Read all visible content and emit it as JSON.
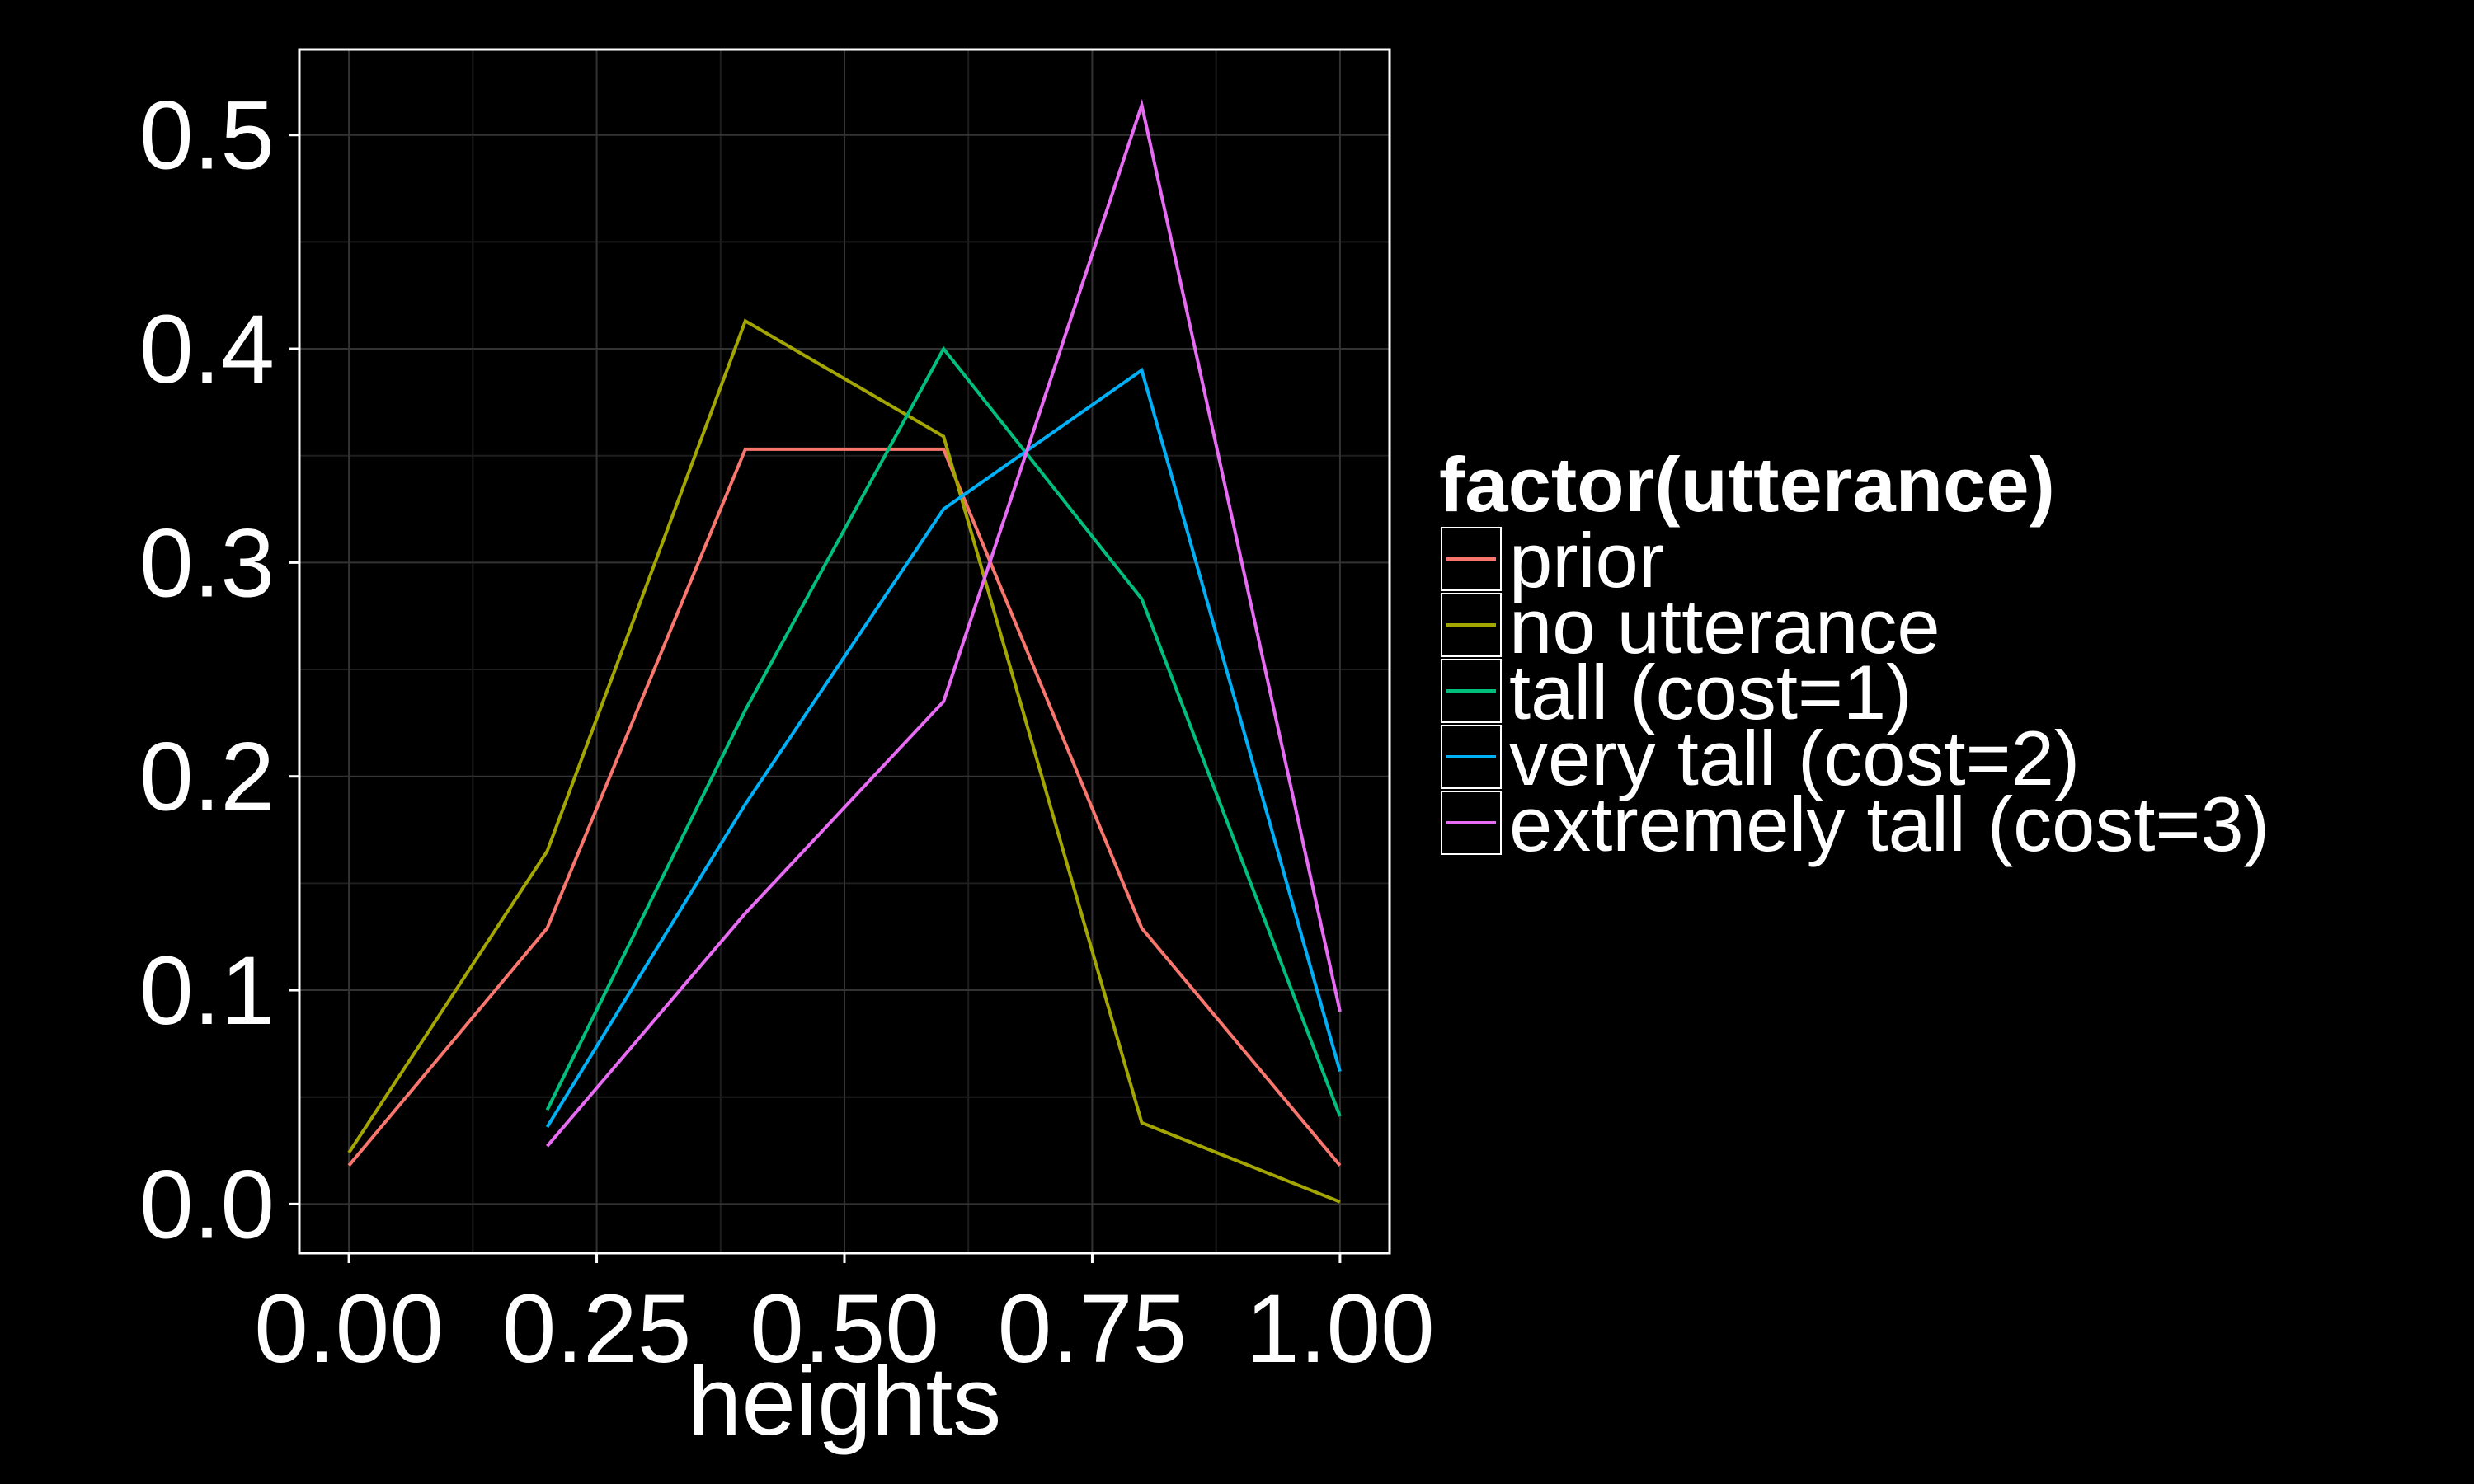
{
  "chart_data": {
    "type": "line",
    "title": "",
    "xlabel": "heights",
    "ylabel": "",
    "xlim": [
      -0.05,
      1.05
    ],
    "ylim": [
      -0.023,
      0.54
    ],
    "x_ticks": [
      0.0,
      0.25,
      0.5,
      0.75,
      1.0
    ],
    "x_tick_labels": [
      "0.00",
      "0.25",
      "0.50",
      "0.75",
      "1.00"
    ],
    "y_ticks": [
      0.0,
      0.1,
      0.2,
      0.3,
      0.4,
      0.5
    ],
    "y_tick_labels": [
      "0.0",
      "0.1",
      "0.2",
      "0.3",
      "0.4",
      "0.5"
    ],
    "grid": true,
    "legend": {
      "title": "factor(utterance)",
      "position": "right"
    },
    "series": [
      {
        "name": "prior",
        "color": "#F8766D",
        "x": [
          0.0,
          0.2,
          0.4,
          0.6,
          0.8,
          1.0
        ],
        "y": [
          0.018,
          0.129,
          0.353,
          0.353,
          0.129,
          0.018
        ]
      },
      {
        "name": "no utterance",
        "color": "#A3A500",
        "x": [
          0.0,
          0.2,
          0.4,
          0.6,
          0.8,
          1.0
        ],
        "y": [
          0.024,
          0.165,
          0.413,
          0.359,
          0.038,
          0.001
        ]
      },
      {
        "name": "tall (cost=1)",
        "color": "#00BF7D",
        "x": [
          0.2,
          0.4,
          0.6,
          0.8,
          1.0
        ],
        "y": [
          0.044,
          0.231,
          0.4,
          0.283,
          0.041
        ]
      },
      {
        "name": "very tall (cost=2)",
        "color": "#00B0F6",
        "x": [
          0.2,
          0.4,
          0.6,
          0.8,
          1.0
        ],
        "y": [
          0.036,
          0.187,
          0.325,
          0.39,
          0.062
        ]
      },
      {
        "name": "extremely tall (cost=3)",
        "color": "#E76BF3",
        "x": [
          0.2,
          0.4,
          0.6,
          0.8,
          1.0
        ],
        "y": [
          0.027,
          0.136,
          0.235,
          0.514,
          0.09
        ]
      }
    ]
  }
}
